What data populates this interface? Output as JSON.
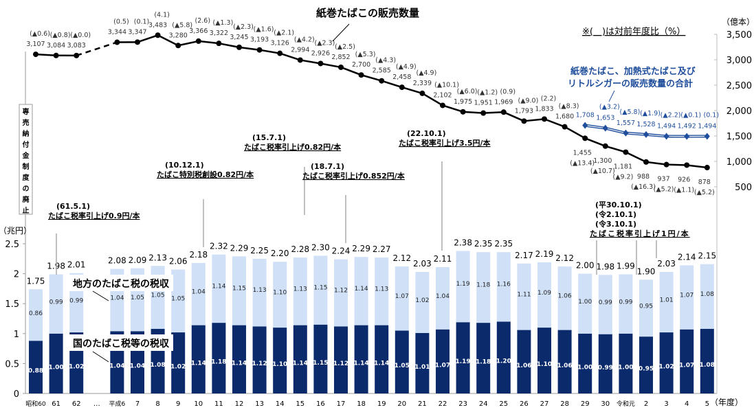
{
  "chart_data": [
    {
      "type": "bar",
      "stacked": true,
      "ylabel": "（兆円）",
      "xlabel": "（年度）",
      "ylim": [
        0,
        2.5
      ],
      "yticks": [
        "0",
        "0.5",
        "1",
        "1.5",
        "2",
        "2.5"
      ],
      "categories": [
        "昭和60",
        "61",
        "62",
        "…",
        "平成6",
        "7",
        "8",
        "9",
        "10",
        "11",
        "12",
        "13",
        "14",
        "15",
        "16",
        "17",
        "18",
        "19",
        "20",
        "21",
        "22",
        "23",
        "24",
        "25",
        "26",
        "27",
        "28",
        "29",
        "30",
        "令和元",
        "2",
        "3",
        "4",
        "5"
      ],
      "series": [
        {
          "name": "国のたばこ税等の税収",
          "color": "#0b2a6b",
          "values": [
            0.88,
            1.0,
            1.02,
            null,
            1.04,
            1.04,
            1.08,
            1.02,
            1.14,
            1.18,
            1.14,
            1.12,
            1.1,
            1.14,
            1.15,
            1.12,
            1.14,
            1.14,
            1.05,
            1.01,
            1.07,
            1.19,
            1.18,
            1.2,
            1.06,
            1.1,
            1.06,
            1.0,
            0.99,
            1.0,
            0.95,
            1.02,
            1.07,
            1.08
          ]
        },
        {
          "name": "地方のたばこ税の税収",
          "color": "#cfe0f7",
          "values": [
            0.86,
            0.99,
            0.99,
            null,
            1.04,
            1.05,
            1.05,
            1.05,
            1.04,
            1.14,
            1.15,
            1.13,
            1.1,
            1.13,
            1.15,
            1.12,
            1.14,
            1.13,
            1.07,
            1.02,
            1.04,
            1.19,
            1.18,
            1.16,
            1.11,
            1.09,
            1.06,
            1.0,
            0.99,
            0.99,
            0.95,
            1.01,
            1.07,
            1.08
          ]
        }
      ],
      "totals": [
        "1.75",
        "1.98",
        "2.01",
        null,
        "2.08",
        "2.09",
        "2.13",
        "2.06",
        "2.18",
        "2.32",
        "2.29",
        "2.25",
        "2.20",
        "2.28",
        "2.30",
        "2.24",
        "2.29",
        "2.27",
        "2.12",
        "2.03",
        "2.11",
        "2.38",
        "2.35",
        "2.35",
        "2.17",
        "2.19",
        "2.12",
        "2.00",
        "1.98",
        "1.99",
        "1.90",
        "2.03",
        "2.14",
        "2.15"
      ]
    },
    {
      "type": "line",
      "ylabel": "（億本）",
      "ylim": [
        500,
        3500
      ],
      "yticks": [
        "500",
        "1,000",
        "1,500",
        "2,000",
        "2,500",
        "3,000",
        "3,500"
      ],
      "note": "※(　)は対前年度比（%）",
      "series": [
        {
          "name": "紙巻たばこの販売数量",
          "color": "#000000",
          "values": [
            3107,
            3084,
            3083,
            null,
            3344,
            3347,
            3483,
            3280,
            3366,
            3322,
            3245,
            3193,
            3126,
            2994,
            2926,
            2852,
            2700,
            2585,
            2458,
            2339,
            2102,
            1975,
            1951,
            1969,
            1793,
            1833,
            1680,
            1455,
            1300,
            1181,
            988,
            937,
            926,
            878
          ],
          "changes": [
            "▲0.6",
            "▲0.8",
            "▲0.0",
            null,
            "0.5",
            "0.1",
            "4.1",
            "▲5.8",
            "2.6",
            "▲1.3",
            "▲2.3",
            "▲1.6",
            "▲2.1",
            "▲4.2",
            "▲2.3",
            "▲2.5",
            "▲5.3",
            "▲4.3",
            "▲4.9",
            "▲4.9",
            "▲10.1",
            "▲6.0",
            "▲1.2",
            "0.9",
            "▲9.0",
            "2.2",
            "▲8.3",
            "▲13.4",
            "▲10.7",
            "▲9.2",
            "▲16.3",
            "▲5.2",
            "▲1.1",
            "▲5.2"
          ]
        },
        {
          "name": "紙巻たばこ、加熱式たばこ及びリトルシガーの販売数量の合計",
          "color": "#1f4e9c",
          "values": [
            null,
            null,
            null,
            null,
            null,
            null,
            null,
            null,
            null,
            null,
            null,
            null,
            null,
            null,
            null,
            null,
            null,
            null,
            null,
            null,
            null,
            null,
            null,
            null,
            null,
            null,
            null,
            1708,
            1653,
            1557,
            1528,
            1494,
            1492,
            1494
          ],
          "changes": [
            null,
            null,
            null,
            null,
            null,
            null,
            null,
            null,
            null,
            null,
            null,
            null,
            null,
            null,
            null,
            null,
            null,
            null,
            null,
            null,
            null,
            null,
            null,
            null,
            null,
            null,
            null,
            null,
            "▲3.2",
            "▲5.8",
            "▲1.9",
            "▲2.2",
            "▲0.1",
            "0.1"
          ]
        }
      ]
    }
  ],
  "labels": {
    "line_title_1": "紙巻たばこの販売数量",
    "line_title_2a": "紙巻たばこ、加熱式たばこ及び",
    "line_title_2b": "リトルシガーの販売数量の合計",
    "local_tax": "地方のたばこ税の税収",
    "national_tax": "国のたばこ税等の税収",
    "monopoly": "専売納付金制度の廃止"
  },
  "events": [
    {
      "date": "(61.5.1)",
      "text": "たばこ税率引上げ0.9円/本"
    },
    {
      "date": "(10.12.1)",
      "text": "たばこ特別税創設0.82円/本"
    },
    {
      "date": "(15.7.1)",
      "text": "たばこ税率引上げ0.82円/本"
    },
    {
      "date": "(18.7.1)",
      "text": "たばこ税率引上げ0.852円/本"
    },
    {
      "date": "(22.10.1)",
      "text": "たばこ税率引上げ3.5円/本"
    },
    {
      "date": "(平30.10.1)",
      "date2": "(令2.10.1)",
      "date3": "(令3.10.1)",
      "text": "たばこ税率引上げ1円/本"
    }
  ]
}
